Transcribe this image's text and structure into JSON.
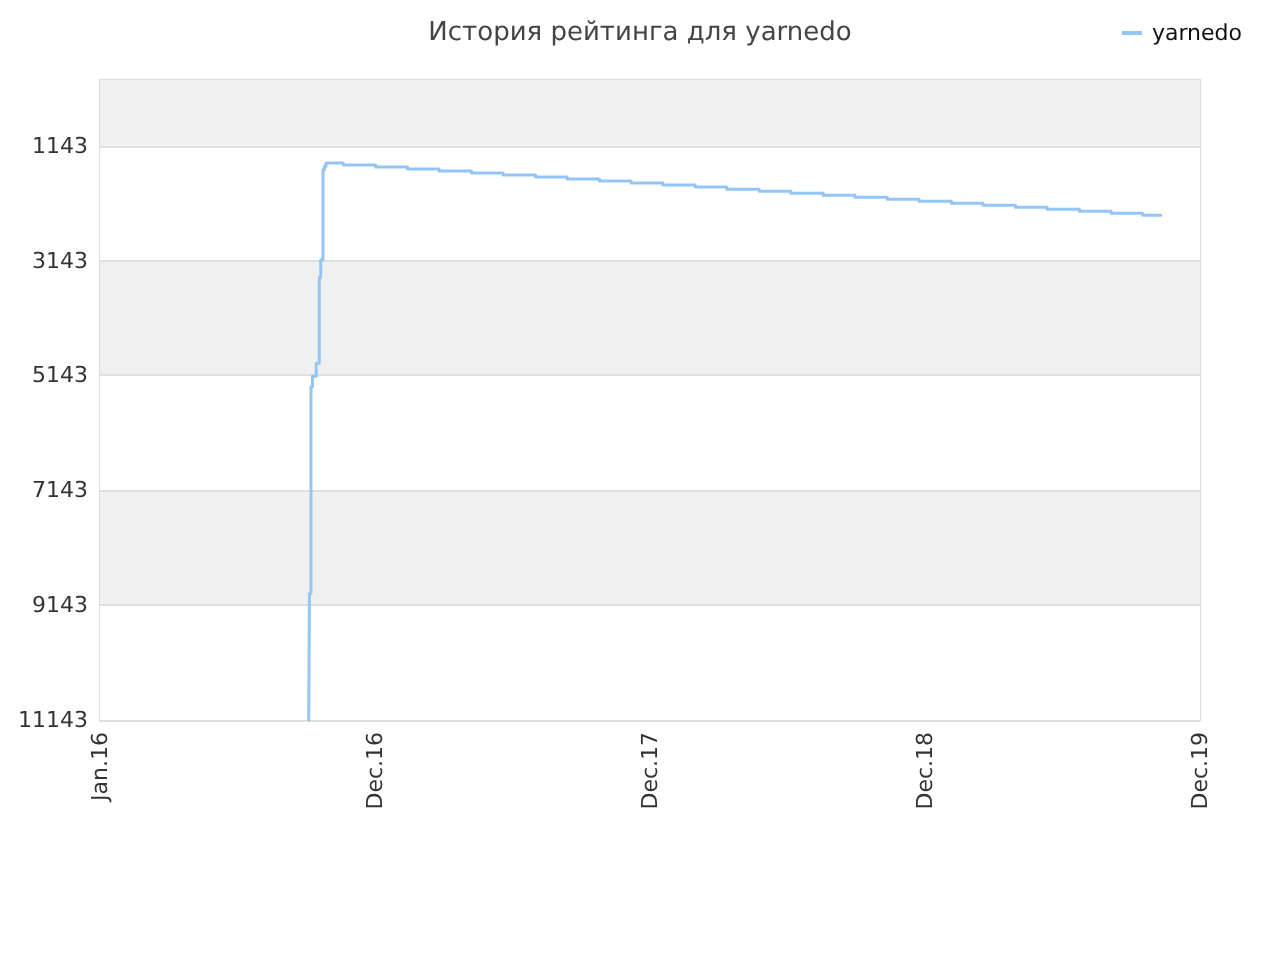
{
  "chart_data": {
    "type": "step",
    "title": "История рейтинга для yarnedo",
    "x": [
      "2016-10-04",
      "2016-10-05",
      "2016-10-07",
      "2016-10-09",
      "2016-10-14",
      "2016-10-18",
      "2016-10-20",
      "2016-10-23",
      "2016-10-25",
      "2016-10-27",
      "2016-11-19",
      "2017-01-01",
      "2017-02-12",
      "2017-03-26",
      "2017-05-08",
      "2017-06-19",
      "2017-08-01",
      "2017-09-12",
      "2017-10-25",
      "2017-12-06",
      "2018-01-17",
      "2018-03-01",
      "2018-04-12",
      "2018-05-25",
      "2018-07-06",
      "2018-08-18",
      "2018-09-29",
      "2018-11-11",
      "2018-12-23",
      "2019-02-04",
      "2019-03-18",
      "2019-04-30",
      "2019-06-11",
      "2019-07-24",
      "2019-09-04",
      "2019-10-16",
      "2019-11-09"
    ],
    "series": [
      {
        "name": "yarnedo",
        "color": "#94c6f5",
        "values": [
          11143,
          8940,
          5340,
          5160,
          4930,
          3440,
          3130,
          1560,
          1500,
          1445,
          1480,
          1515,
          1550,
          1585,
          1620,
          1655,
          1690,
          1725,
          1760,
          1795,
          1830,
          1865,
          1900,
          1935,
          1970,
          2005,
          2040,
          2075,
          2110,
          2145,
          2180,
          2215,
          2250,
          2285,
          2320,
          2355,
          2355
        ]
      }
    ],
    "xlim": [
      "2016-01-01",
      "2019-12-31"
    ],
    "xticks": [
      {
        "value": "2016-01-01",
        "label": "Jan.16"
      },
      {
        "value": "2016-12-31",
        "label": "Dec.16"
      },
      {
        "value": "2017-12-31",
        "label": "Dec.17"
      },
      {
        "value": "2018-12-31",
        "label": "Dec.18"
      },
      {
        "value": "2019-12-31",
        "label": "Dec.19"
      }
    ],
    "ylim": [
      11143,
      0
    ],
    "yticks": [
      1143,
      3143,
      5143,
      7143,
      9143,
      11143
    ],
    "grid": "y",
    "legend": "top right",
    "marker": "none",
    "line_style": "solid"
  }
}
